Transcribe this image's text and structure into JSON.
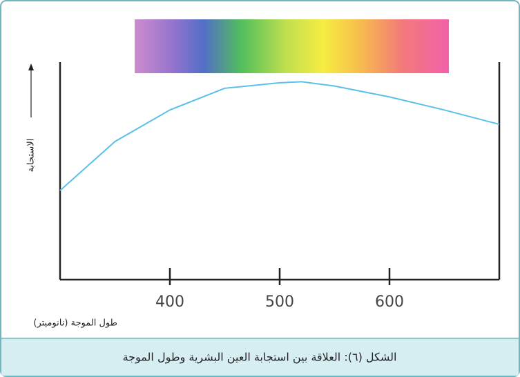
{
  "chart_data": {
    "type": "line",
    "title": "الشكل (٦): العلاقة بين استجابة العين البشرية وطول الموجة",
    "x_label": "طول الموجة (نانوميتر)",
    "y_label": "الاستجابة",
    "x": [
      300,
      350,
      400,
      450,
      500,
      520,
      550,
      600,
      650,
      700
    ],
    "series": [
      {
        "color": "#5bc0e8",
        "values": [
          41,
          63.5,
          78,
          88,
          90.5,
          91,
          89,
          84,
          78,
          71.4
        ]
      }
    ],
    "xlim": [
      300,
      700
    ],
    "xticks": [
      400,
      500,
      600
    ],
    "ylim": [
      0,
      100
    ]
  }
}
